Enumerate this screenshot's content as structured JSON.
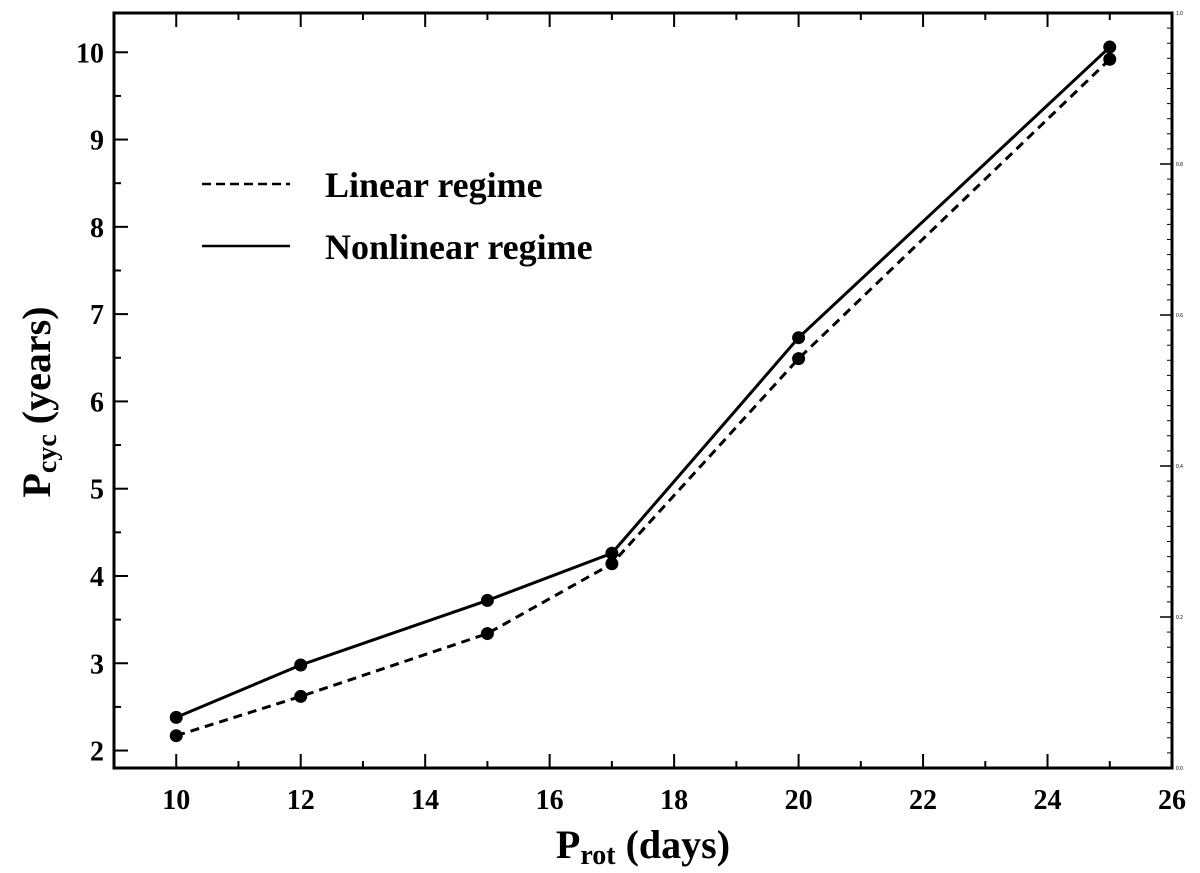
{
  "chart_data": {
    "type": "line",
    "xlabel": {
      "main": "P",
      "sub": "rot",
      "rest": " (days)"
    },
    "ylabel": {
      "main": "P",
      "sub": "cyc",
      "rest": " (years)"
    },
    "xlim": [
      9,
      26
    ],
    "ylim": [
      1.8,
      10.45
    ],
    "x_ticks": [
      10,
      12,
      14,
      16,
      18,
      20,
      22,
      24,
      26
    ],
    "y_ticks": [
      2,
      3,
      4,
      5,
      6,
      7,
      8,
      9,
      10
    ],
    "right_axis": {
      "ylim": [
        0,
        1
      ],
      "ticks": [
        "0.0",
        "0.2",
        "0.4",
        "0.6",
        "0.8",
        "1.0"
      ]
    },
    "legend_position": "upper-left",
    "grid": false,
    "series": [
      {
        "name": "Linear regime",
        "line_style": "dashed",
        "x": [
          10,
          12,
          15,
          17,
          20,
          25
        ],
        "y": [
          2.17,
          2.62,
          3.34,
          4.14,
          6.49,
          9.92
        ]
      },
      {
        "name": "Nonlinear regime",
        "line_style": "solid",
        "x": [
          10,
          12,
          15,
          17,
          20,
          25
        ],
        "y": [
          2.38,
          2.98,
          3.72,
          4.26,
          6.73,
          10.06
        ]
      }
    ]
  }
}
